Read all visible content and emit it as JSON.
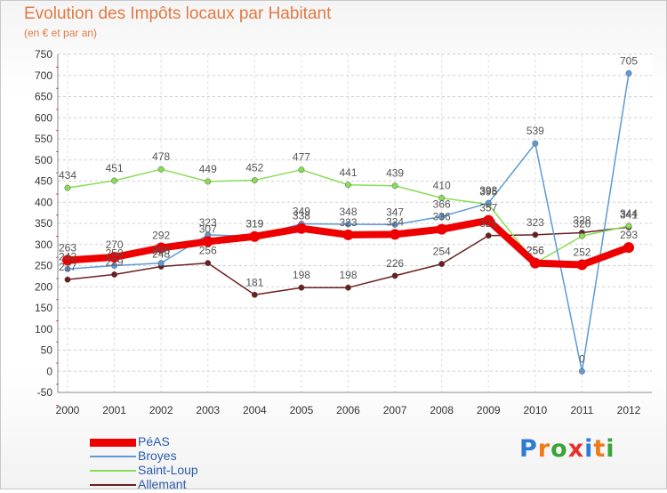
{
  "title": "Evolution des Impôts locaux par Habitant",
  "subtitle": "(en € et par an)",
  "logo": {
    "text": "Proxiti",
    "colors": [
      "#2e7bd1",
      "#ef7a1a",
      "#3aa33a",
      "#e8312a",
      "#2e7bd1",
      "#ef7a1a",
      "#3aa33a"
    ]
  },
  "chart_data": {
    "type": "line",
    "title": "Evolution des Impôts locaux par Habitant",
    "subtitle": "(en € et par an)",
    "xlabel": "",
    "ylabel": "",
    "x": [
      "2000",
      "2001",
      "2002",
      "2003",
      "2004",
      "2005",
      "2006",
      "2007",
      "2008",
      "2009",
      "2010",
      "2011",
      "2012"
    ],
    "ylim": [
      -50,
      750
    ],
    "yticks": [
      -50,
      0,
      50,
      100,
      150,
      200,
      250,
      300,
      350,
      400,
      450,
      500,
      550,
      600,
      650,
      700,
      750
    ],
    "grid": "horizontal dashed",
    "legend_position": "bottom-left",
    "series": [
      {
        "name": "Allemant",
        "color": "#6b1f1f",
        "values": [
          217,
          229,
          248,
          256,
          181,
          198,
          198,
          226,
          254,
          321,
          323,
          328,
          341
        ]
      },
      {
        "name": "Saint-Loup",
        "color": "#88dd55",
        "values": [
          434,
          451,
          478,
          449,
          452,
          477,
          441,
          439,
          410,
          395,
          256,
          320,
          344
        ]
      },
      {
        "name": "Broyes",
        "color": "#5b9bd5",
        "values": [
          242,
          250,
          256,
          323,
          319,
          349,
          348,
          347,
          366,
          398,
          539,
          0,
          705
        ]
      },
      {
        "name": "PéAS",
        "color": "#ee0000",
        "values": [
          263,
          270,
          292,
          307,
          319,
          338,
          323,
          324,
          336,
          357,
          256,
          252,
          293
        ]
      }
    ],
    "legend": [
      "PéAS",
      "Broyes",
      "Saint-Loup",
      "Allemant"
    ]
  }
}
